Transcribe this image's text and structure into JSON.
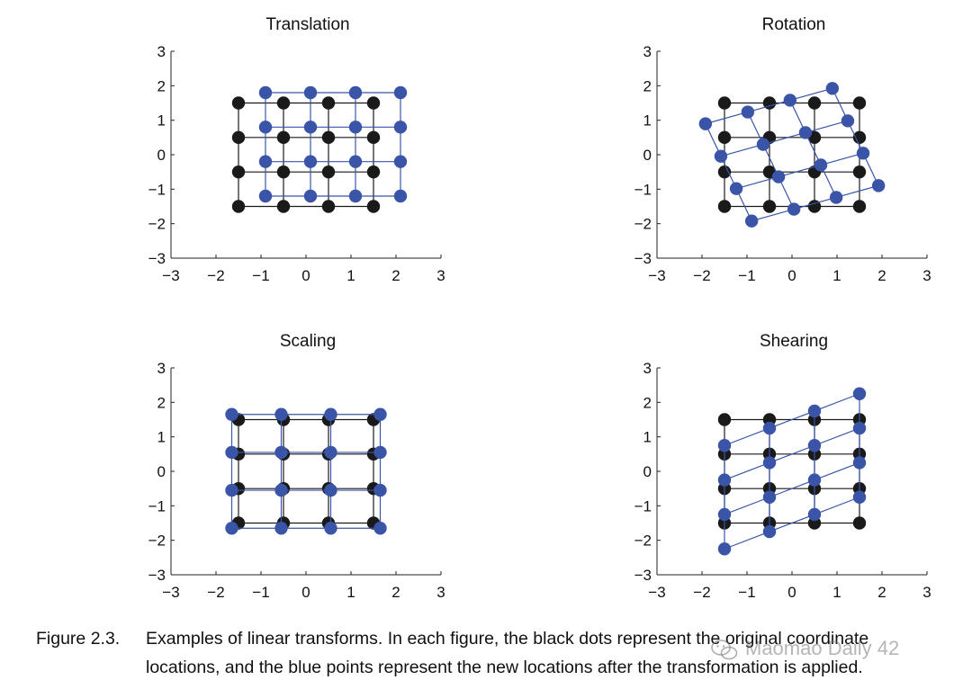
{
  "colors": {
    "original": "#1a1a1a",
    "transformed": "#3a55a8",
    "axis": "#222222"
  },
  "chart_data": [
    {
      "type": "scatter",
      "title": "Translation",
      "xlim": [
        -3,
        3
      ],
      "ylim": [
        -3,
        3
      ],
      "xticks": [
        "−3",
        "−2",
        "−1",
        "0",
        "1",
        "2",
        "3"
      ],
      "yticks": [
        "−3",
        "−2",
        "−1",
        "0",
        "1",
        "2",
        "3"
      ],
      "grid": "4x4 connected points",
      "series": [
        {
          "color": "#1a1a1a",
          "x": [
            -1.5,
            -0.5,
            0.5,
            1.5
          ],
          "y": [
            -1.5,
            -0.5,
            0.5,
            1.5
          ]
        },
        {
          "color": "#3a55a8",
          "x": [
            -0.9,
            0.1,
            1.1,
            2.1
          ],
          "y": [
            -1.2,
            -0.2,
            0.8,
            1.8
          ]
        }
      ]
    },
    {
      "type": "scatter",
      "title": "Rotation",
      "xlim": [
        -3,
        3
      ],
      "ylim": [
        -3,
        3
      ],
      "xticks": [
        "−3",
        "−2",
        "−1",
        "0",
        "1",
        "2",
        "3"
      ],
      "yticks": [
        "−3",
        "−2",
        "−1",
        "0",
        "1",
        "2",
        "3"
      ],
      "grid": "4x4 connected points",
      "series": [
        {
          "color": "#1a1a1a",
          "x": [
            -1.5,
            -0.5,
            0.5,
            1.5
          ],
          "y": [
            -1.5,
            -0.5,
            0.5,
            1.5
          ]
        },
        {
          "color": "#3a55a8",
          "rotation_deg": 20,
          "x": [
            -1.5,
            -0.5,
            0.5,
            1.5
          ],
          "y": [
            -1.5,
            -0.5,
            0.5,
            1.5
          ]
        }
      ]
    },
    {
      "type": "scatter",
      "title": "Scaling",
      "xlim": [
        -3,
        3
      ],
      "ylim": [
        -3,
        3
      ],
      "xticks": [
        "−3",
        "−2",
        "−1",
        "0",
        "1",
        "2",
        "3"
      ],
      "yticks": [
        "−3",
        "−2",
        "−1",
        "0",
        "1",
        "2",
        "3"
      ],
      "grid": "4x4 connected points",
      "series": [
        {
          "color": "#1a1a1a",
          "x": [
            -1.5,
            -0.5,
            0.5,
            1.5
          ],
          "y": [
            -1.5,
            -0.5,
            0.5,
            1.5
          ]
        },
        {
          "color": "#3a55a8",
          "x": [
            -1.65,
            -0.55,
            0.55,
            1.65
          ],
          "y": [
            -1.65,
            -0.55,
            0.55,
            1.65
          ]
        }
      ]
    },
    {
      "type": "scatter",
      "title": "Shearing",
      "xlim": [
        -3,
        3
      ],
      "ylim": [
        -3,
        3
      ],
      "xticks": [
        "−3",
        "−2",
        "−1",
        "0",
        "1",
        "2",
        "3"
      ],
      "yticks": [
        "−3",
        "−2",
        "−1",
        "0",
        "1",
        "2",
        "3"
      ],
      "grid": "4x4 connected points",
      "series": [
        {
          "color": "#1a1a1a",
          "x": [
            -1.5,
            -0.5,
            0.5,
            1.5
          ],
          "y": [
            -1.5,
            -0.5,
            0.5,
            1.5
          ]
        },
        {
          "color": "#3a55a8",
          "shear_y_per_x": 0.5,
          "x": [
            -1.5,
            -0.5,
            0.5,
            1.5
          ],
          "y": [
            -1.5,
            -0.5,
            0.5,
            1.5
          ]
        }
      ]
    }
  ],
  "caption": {
    "label": "Figure 2.3.",
    "text": "Examples of linear transforms. In each figure, the black dots represent the original coordinate locations, and the blue points represent the new locations after the transformation is applied."
  },
  "watermark": {
    "text": "Maomao Daily 42",
    "icon": "wechat-icon"
  }
}
